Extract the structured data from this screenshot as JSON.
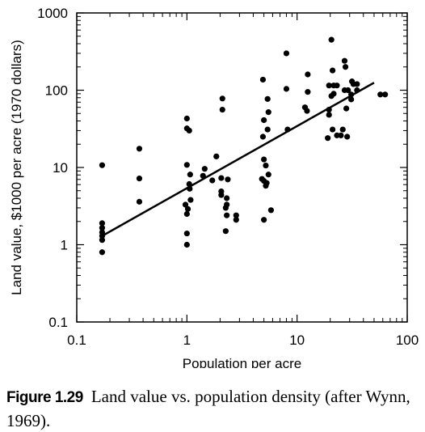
{
  "chart_data": {
    "type": "scatter",
    "xlabel": "Population per acre",
    "ylabel": "Land value, $1000 per acre (1970 dollars)",
    "xscale": "log",
    "yscale": "log",
    "xlim": [
      0.1,
      100
    ],
    "ylim": [
      0.1,
      1000
    ],
    "x_ticks": [
      "0.1",
      "1",
      "10",
      "100"
    ],
    "y_ticks": [
      "0.1",
      "1",
      "10",
      "100",
      "1000"
    ],
    "grid": false,
    "legend": "none",
    "points": [
      [
        0.17,
        10.7
      ],
      [
        0.17,
        1.9
      ],
      [
        0.17,
        1.65
      ],
      [
        0.17,
        1.45
      ],
      [
        0.17,
        1.3
      ],
      [
        0.17,
        1.15
      ],
      [
        0.17,
        0.8
      ],
      [
        0.37,
        17.5
      ],
      [
        0.37,
        7.2
      ],
      [
        0.37,
        3.6
      ],
      [
        1.0,
        43
      ],
      [
        1.0,
        32
      ],
      [
        1.0,
        10.8
      ],
      [
        0.97,
        3.3
      ],
      [
        1.02,
        2.9
      ],
      [
        1.0,
        2.5
      ],
      [
        1.0,
        1.4
      ],
      [
        1.0,
        1.0
      ],
      [
        1.05,
        30
      ],
      [
        1.07,
        8.1
      ],
      [
        1.05,
        6.1
      ],
      [
        1.06,
        5.3
      ],
      [
        1.08,
        3.8
      ],
      [
        1.45,
        9.6
      ],
      [
        1.4,
        7.8
      ],
      [
        1.7,
        6.8
      ],
      [
        1.85,
        13.9
      ],
      [
        2.1,
        78
      ],
      [
        2.1,
        56
      ],
      [
        2.05,
        7.3
      ],
      [
        2.05,
        4.9
      ],
      [
        2.05,
        4.4
      ],
      [
        2.3,
        4.0
      ],
      [
        2.35,
        7.0
      ],
      [
        2.3,
        3.3
      ],
      [
        2.25,
        3.0
      ],
      [
        2.3,
        2.4
      ],
      [
        2.25,
        1.5
      ],
      [
        2.8,
        2.4
      ],
      [
        2.8,
        2.1
      ],
      [
        4.9,
        137
      ],
      [
        5.0,
        41
      ],
      [
        5.4,
        77
      ],
      [
        5.5,
        52
      ],
      [
        5.4,
        31
      ],
      [
        4.9,
        25
      ],
      [
        5.0,
        12.7
      ],
      [
        5.2,
        10.6
      ],
      [
        5.5,
        8.1
      ],
      [
        4.8,
        7.1
      ],
      [
        5.0,
        6.7
      ],
      [
        5.3,
        6.3
      ],
      [
        5.2,
        5.8
      ],
      [
        5.8,
        2.8
      ],
      [
        5.0,
        2.1
      ],
      [
        8.0,
        300
      ],
      [
        8.0,
        104
      ],
      [
        8.2,
        31
      ],
      [
        12.5,
        160
      ],
      [
        12.5,
        95
      ],
      [
        11.8,
        60
      ],
      [
        12.3,
        54
      ],
      [
        20.5,
        450
      ],
      [
        21.0,
        180
      ],
      [
        19.5,
        115
      ],
      [
        21.5,
        115
      ],
      [
        23.0,
        115
      ],
      [
        21.5,
        90
      ],
      [
        20.5,
        84
      ],
      [
        19.5,
        56
      ],
      [
        19.5,
        48
      ],
      [
        21.0,
        31
      ],
      [
        19.0,
        24
      ],
      [
        23.0,
        26
      ],
      [
        27.0,
        240
      ],
      [
        27.5,
        200
      ],
      [
        27.0,
        100
      ],
      [
        29.0,
        100
      ],
      [
        31.5,
        130
      ],
      [
        32.5,
        120
      ],
      [
        31.0,
        88
      ],
      [
        35.0,
        120
      ],
      [
        35.0,
        100
      ],
      [
        31.0,
        76
      ],
      [
        28.0,
        58
      ],
      [
        26.0,
        31
      ],
      [
        25.0,
        26
      ],
      [
        28.5,
        25
      ],
      [
        57.0,
        88
      ],
      [
        63.0,
        88
      ]
    ],
    "trend_line": {
      "x": [
        0.17,
        50
      ],
      "y": [
        1.3,
        125
      ]
    }
  },
  "caption": {
    "label": "Figure 1.29",
    "text": "Land value vs. population density (after Wynn, 1969)."
  }
}
